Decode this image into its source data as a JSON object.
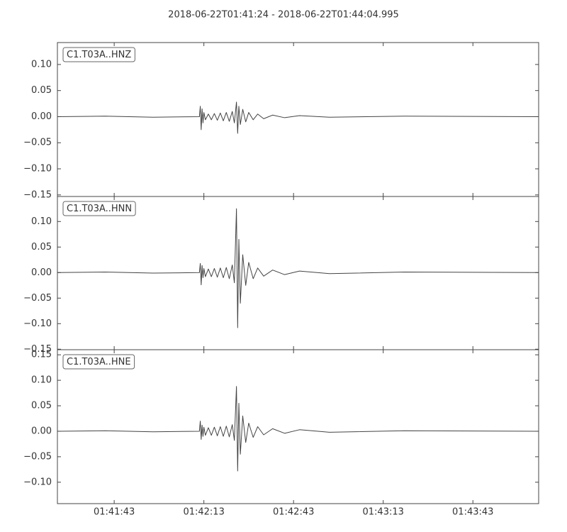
{
  "chart_data": [
    {
      "type": "line",
      "title": "2018-06-22T01:41:24  -  2018-06-22T01:44:04.995",
      "label": "C1.T03A..HNZ",
      "xlim": [
        "01:41:24",
        "01:44:04.995"
      ],
      "ylim": [
        -0.153,
        0.142
      ],
      "yticks": [
        {
          "value": -0.15,
          "label": "−0.15"
        },
        {
          "value": -0.1,
          "label": "−0.10"
        },
        {
          "value": -0.05,
          "label": "−0.05"
        },
        {
          "value": 0,
          "label": "0.00"
        },
        {
          "value": 0.05,
          "label": "0.05"
        },
        {
          "value": 0.1,
          "label": "0.10"
        }
      ],
      "color": "#444444",
      "x": [
        "01:41:24",
        "01:41:40",
        "01:41:56",
        "01:42:11.5",
        "01:42:11.8",
        "01:42:12.1",
        "01:42:12.4",
        "01:42:12.7",
        "01:42:13",
        "01:42:13.5",
        "01:42:14.5",
        "01:42:15.5",
        "01:42:16.5",
        "01:42:17.5",
        "01:42:18.5",
        "01:42:19.5",
        "01:42:20.5",
        "01:42:21.5",
        "01:42:22.5",
        "01:42:23.2",
        "01:42:23.9",
        "01:42:24.3",
        "01:42:24.7",
        "01:42:25.2",
        "01:42:26",
        "01:42:27",
        "01:42:28",
        "01:42:29.5",
        "01:42:31",
        "01:42:33",
        "01:42:36",
        "01:42:40",
        "01:42:45",
        "01:42:55",
        "01:43:20",
        "01:44:04.995"
      ],
      "values": [
        0,
        0.001,
        -0.001,
        0,
        0.02,
        -0.025,
        0.015,
        -0.012,
        0.008,
        -0.006,
        0.005,
        -0.006,
        0.006,
        -0.007,
        0.007,
        -0.008,
        0.008,
        -0.009,
        0.01,
        -0.012,
        0.028,
        -0.032,
        0.02,
        -0.015,
        0.014,
        -0.01,
        0.008,
        -0.006,
        0.005,
        -0.004,
        0.003,
        -0.002,
        0.002,
        -0.001,
        0.001,
        0
      ]
    },
    {
      "type": "line",
      "label": "C1.T03A..HNN",
      "xlim": [
        "01:41:24",
        "01:44:04.995"
      ],
      "ylim": [
        -0.151,
        0.149
      ],
      "yticks": [
        {
          "value": -0.15,
          "label": "−0.15"
        },
        {
          "value": -0.1,
          "label": "−0.10"
        },
        {
          "value": -0.05,
          "label": "−0.05"
        },
        {
          "value": 0,
          "label": "0.00"
        },
        {
          "value": 0.05,
          "label": "0.05"
        },
        {
          "value": 0.1,
          "label": "0.10"
        }
      ],
      "color": "#444444",
      "x": [
        "01:41:24",
        "01:41:40",
        "01:41:56",
        "01:42:11.5",
        "01:42:11.8",
        "01:42:12.1",
        "01:42:12.4",
        "01:42:12.7",
        "01:42:13",
        "01:42:13.5",
        "01:42:14.5",
        "01:42:15.5",
        "01:42:16.5",
        "01:42:17.5",
        "01:42:18.5",
        "01:42:19.5",
        "01:42:20.5",
        "01:42:21.5",
        "01:42:22.5",
        "01:42:23.2",
        "01:42:23.9",
        "01:42:24.3",
        "01:42:24.7",
        "01:42:25.2",
        "01:42:26",
        "01:42:27",
        "01:42:28",
        "01:42:29.5",
        "01:42:31",
        "01:42:33",
        "01:42:36",
        "01:42:40",
        "01:42:45",
        "01:42:55",
        "01:43:20",
        "01:44:04.995"
      ],
      "values": [
        0,
        0.001,
        -0.001,
        0,
        0.018,
        -0.024,
        0.014,
        -0.01,
        0.008,
        -0.008,
        0.007,
        -0.008,
        0.008,
        -0.009,
        0.009,
        -0.01,
        0.01,
        -0.012,
        0.015,
        -0.02,
        0.125,
        -0.108,
        0.065,
        -0.06,
        0.035,
        -0.025,
        0.02,
        -0.012,
        0.009,
        -0.007,
        0.005,
        -0.004,
        0.003,
        -0.002,
        0.001,
        0
      ]
    },
    {
      "type": "line",
      "label": "C1.T03A..HNE",
      "xlim": [
        "01:41:24",
        "01:44:04.995"
      ],
      "ylim": [
        -0.142,
        0.16
      ],
      "yticks": [
        {
          "value": -0.1,
          "label": "−0.10"
        },
        {
          "value": -0.05,
          "label": "−0.05"
        },
        {
          "value": 0,
          "label": "0.00"
        },
        {
          "value": 0.05,
          "label": "0.05"
        },
        {
          "value": 0.1,
          "label": "0.10"
        },
        {
          "value": 0.15,
          "label": "0.15"
        }
      ],
      "xticks": [
        "01:41:43",
        "01:42:13",
        "01:42:43",
        "01:43:13",
        "01:43:43"
      ],
      "color": "#444444",
      "x": [
        "01:41:24",
        "01:41:40",
        "01:41:56",
        "01:42:11.5",
        "01:42:11.8",
        "01:42:12.1",
        "01:42:12.4",
        "01:42:12.7",
        "01:42:13",
        "01:42:13.5",
        "01:42:14.5",
        "01:42:15.5",
        "01:42:16.5",
        "01:42:17.5",
        "01:42:18.5",
        "01:42:19.5",
        "01:42:20.5",
        "01:42:21.5",
        "01:42:22.5",
        "01:42:23.2",
        "01:42:23.9",
        "01:42:24.3",
        "01:42:24.7",
        "01:42:25.2",
        "01:42:26",
        "01:42:27",
        "01:42:28",
        "01:42:29.5",
        "01:42:31",
        "01:42:33",
        "01:42:36",
        "01:42:40",
        "01:42:45",
        "01:42:55",
        "01:43:20",
        "01:44:04.995"
      ],
      "values": [
        0,
        0.001,
        -0.001,
        0,
        0.02,
        -0.016,
        0.012,
        -0.01,
        0.008,
        -0.008,
        0.007,
        -0.008,
        0.008,
        -0.009,
        0.009,
        -0.01,
        0.01,
        -0.011,
        0.013,
        -0.018,
        0.088,
        -0.078,
        0.055,
        -0.045,
        0.03,
        -0.022,
        0.016,
        -0.012,
        0.009,
        -0.007,
        0.005,
        -0.004,
        0.003,
        -0.002,
        0.001,
        0
      ]
    }
  ]
}
